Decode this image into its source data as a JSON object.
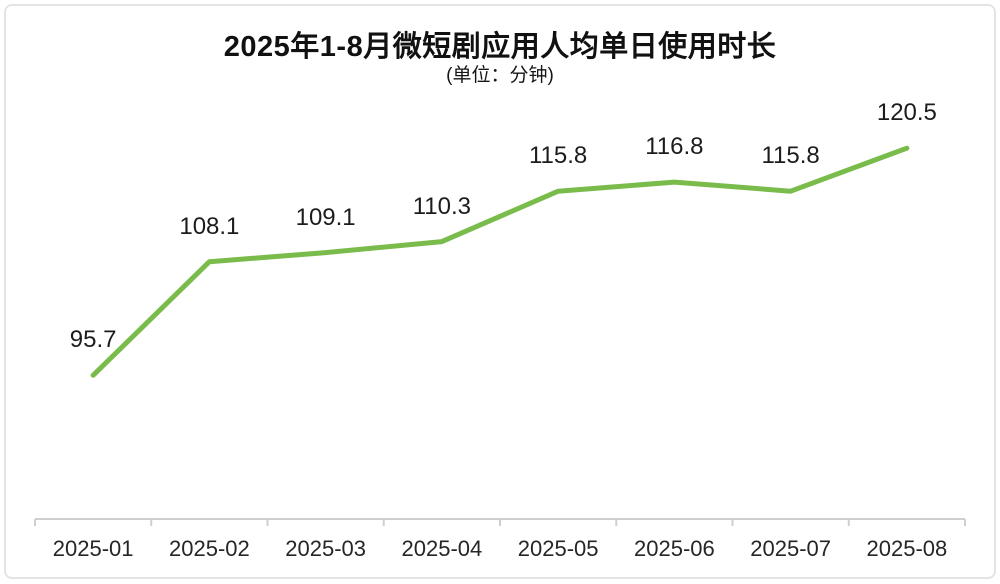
{
  "header": {
    "title": "2025年1-8月微短剧应用人均单日使用时长",
    "subtitle": "(单位：分钟)"
  },
  "chart_data": {
    "type": "line",
    "title": "2025年1-8月微短剧应用人均单日使用时长",
    "subtitle": "(单位：分钟)",
    "unit": "分钟",
    "categories": [
      "2025-01",
      "2025-02",
      "2025-03",
      "2025-04",
      "2025-05",
      "2025-06",
      "2025-07",
      "2025-08"
    ],
    "values": [
      95.7,
      108.1,
      109.1,
      110.3,
      115.8,
      116.8,
      115.8,
      120.5
    ],
    "value_labels": [
      "95.7",
      "108.1",
      "109.1",
      "110.3",
      "115.8",
      "116.8",
      "115.8",
      "120.5"
    ],
    "xlabel": "",
    "ylabel": "",
    "ylim": [
      80,
      125
    ],
    "grid": false,
    "legend": "none",
    "data_labels": true,
    "colors": {
      "line": "#7abc4b",
      "axis": "#cfcfcf",
      "value_label_text": "#1c1c1c",
      "axis_label_text": "#262626",
      "title_text": "#111111",
      "frame_border": "#e4e4e4",
      "background": "#ffffff"
    }
  }
}
